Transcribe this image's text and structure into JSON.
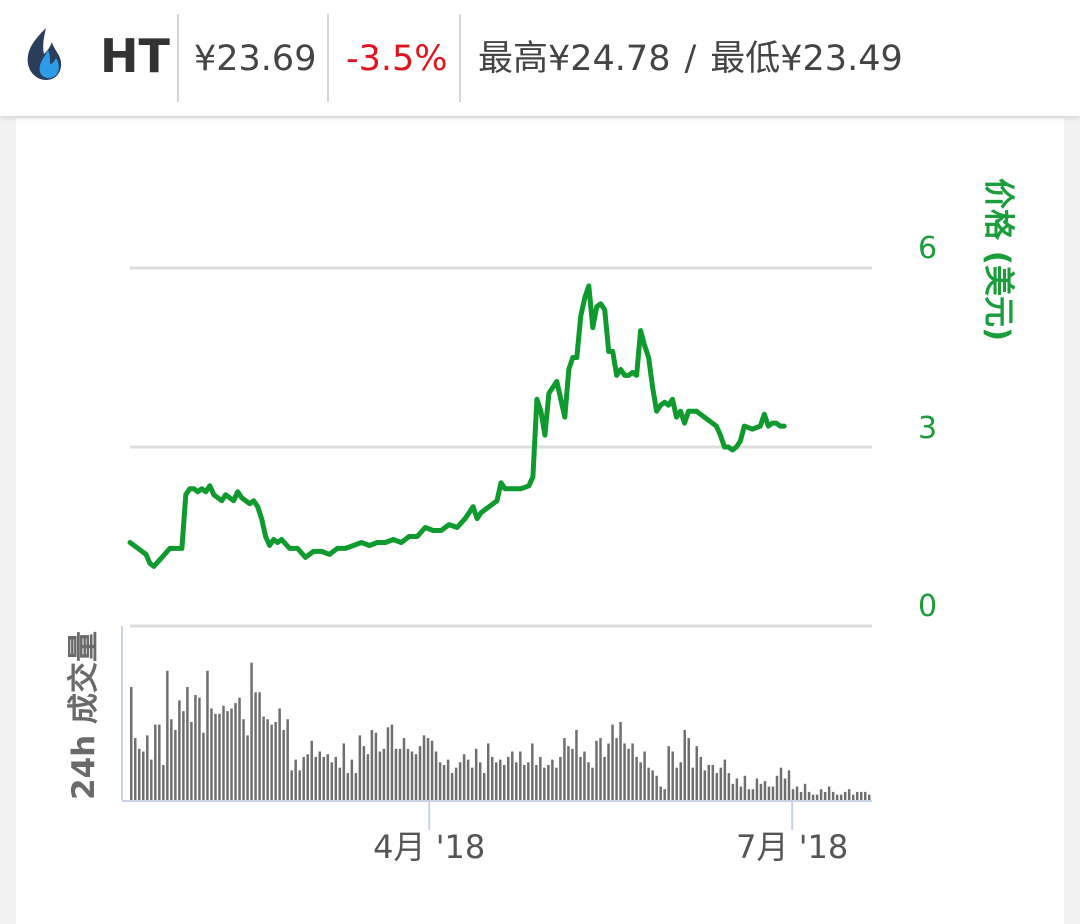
{
  "header": {
    "symbol": "HT",
    "price": "¥23.69",
    "change": "-3.5%",
    "high": "最高¥24.78",
    "separator": "/",
    "low": "最低¥23.49"
  },
  "colors": {
    "price_line": "#0f9a2e",
    "volume_bar": "#6f6f6f",
    "change_negative": "#e0141e"
  },
  "icons": {
    "logo": "flame-logo-icon"
  },
  "chart_data": {
    "type": "line",
    "y_axis_label": "价格 (美元)",
    "volume_axis_label": "24h 成交量",
    "yticks": [
      "6",
      "3",
      "0"
    ],
    "ylim": [
      0,
      6
    ],
    "xticks": [
      {
        "label": "4月 '18",
        "x": 75
      },
      {
        "label": "7月 '18",
        "x": 166
      }
    ],
    "x_range": [
      0,
      186
    ],
    "grid": true,
    "price_series": [
      [
        0,
        1.4
      ],
      [
        2,
        1.3
      ],
      [
        4,
        1.2
      ],
      [
        5,
        1.05
      ],
      [
        6,
        1.0
      ],
      [
        8,
        1.15
      ],
      [
        10,
        1.3
      ],
      [
        12,
        1.3
      ],
      [
        13,
        1.3
      ],
      [
        14,
        2.2
      ],
      [
        15,
        2.3
      ],
      [
        16,
        2.3
      ],
      [
        17,
        2.25
      ],
      [
        18,
        2.3
      ],
      [
        19,
        2.25
      ],
      [
        20,
        2.35
      ],
      [
        21,
        2.2
      ],
      [
        22,
        2.15
      ],
      [
        23,
        2.1
      ],
      [
        24,
        2.2
      ],
      [
        25,
        2.15
      ],
      [
        26,
        2.1
      ],
      [
        27,
        2.25
      ],
      [
        28,
        2.15
      ],
      [
        29,
        2.1
      ],
      [
        30,
        2.05
      ],
      [
        31,
        2.1
      ],
      [
        32,
        2.0
      ],
      [
        33,
        1.8
      ],
      [
        34,
        1.5
      ],
      [
        35,
        1.35
      ],
      [
        36,
        1.45
      ],
      [
        37,
        1.4
      ],
      [
        38,
        1.45
      ],
      [
        40,
        1.3
      ],
      [
        42,
        1.3
      ],
      [
        44,
        1.15
      ],
      [
        46,
        1.25
      ],
      [
        48,
        1.25
      ],
      [
        50,
        1.2
      ],
      [
        52,
        1.3
      ],
      [
        54,
        1.3
      ],
      [
        56,
        1.35
      ],
      [
        58,
        1.4
      ],
      [
        60,
        1.35
      ],
      [
        62,
        1.4
      ],
      [
        64,
        1.4
      ],
      [
        66,
        1.45
      ],
      [
        68,
        1.4
      ],
      [
        70,
        1.5
      ],
      [
        72,
        1.5
      ],
      [
        74,
        1.65
      ],
      [
        76,
        1.6
      ],
      [
        78,
        1.6
      ],
      [
        80,
        1.7
      ],
      [
        82,
        1.65
      ],
      [
        84,
        1.8
      ],
      [
        86,
        2.0
      ],
      [
        87,
        1.8
      ],
      [
        88,
        1.9
      ],
      [
        90,
        2.0
      ],
      [
        92,
        2.1
      ],
      [
        93,
        2.4
      ],
      [
        94,
        2.3
      ],
      [
        96,
        2.3
      ],
      [
        98,
        2.3
      ],
      [
        100,
        2.35
      ],
      [
        101,
        2.5
      ],
      [
        102,
        3.8
      ],
      [
        103,
        3.6
      ],
      [
        104,
        3.2
      ],
      [
        105,
        3.9
      ],
      [
        106,
        4.0
      ],
      [
        107,
        4.1
      ],
      [
        108,
        3.8
      ],
      [
        109,
        3.5
      ],
      [
        110,
        4.3
      ],
      [
        111,
        4.5
      ],
      [
        112,
        4.5
      ],
      [
        113,
        5.2
      ],
      [
        114,
        5.5
      ],
      [
        115,
        5.7
      ],
      [
        116,
        5.0
      ],
      [
        117,
        5.35
      ],
      [
        118,
        5.4
      ],
      [
        119,
        5.3
      ],
      [
        120,
        4.6
      ],
      [
        121,
        4.6
      ],
      [
        122,
        4.2
      ],
      [
        123,
        4.3
      ],
      [
        124,
        4.2
      ],
      [
        125,
        4.2
      ],
      [
        126,
        4.25
      ],
      [
        127,
        4.2
      ],
      [
        128,
        4.95
      ],
      [
        129,
        4.7
      ],
      [
        130,
        4.5
      ],
      [
        131,
        4.0
      ],
      [
        132,
        3.6
      ],
      [
        133,
        3.7
      ],
      [
        134,
        3.75
      ],
      [
        135,
        3.7
      ],
      [
        136,
        3.8
      ],
      [
        137,
        3.5
      ],
      [
        138,
        3.6
      ],
      [
        139,
        3.4
      ],
      [
        140,
        3.6
      ],
      [
        142,
        3.6
      ],
      [
        144,
        3.5
      ],
      [
        146,
        3.4
      ],
      [
        147,
        3.35
      ],
      [
        148,
        3.2
      ],
      [
        149,
        3.0
      ],
      [
        150,
        3.0
      ],
      [
        151,
        2.95
      ],
      [
        152,
        3.0
      ],
      [
        153,
        3.1
      ],
      [
        154,
        3.35
      ],
      [
        156,
        3.3
      ],
      [
        158,
        3.35
      ],
      [
        159,
        3.55
      ],
      [
        160,
        3.35
      ],
      [
        161,
        3.4
      ],
      [
        162,
        3.4
      ],
      [
        163,
        3.35
      ],
      [
        164,
        3.35
      ]
    ],
    "volume_values": [
      4.2,
      2.3,
      1.9,
      1.8,
      2.4,
      1.5,
      2.8,
      2.8,
      1.3,
      4.8,
      3.0,
      2.6,
      3.7,
      3.3,
      4.2,
      2.9,
      3.9,
      3.8,
      2.5,
      4.8,
      3.4,
      3.2,
      3.2,
      3.5,
      3.3,
      3.4,
      3.6,
      3.8,
      3.0,
      2.4,
      5.1,
      4.0,
      4.0,
      3.1,
      3.0,
      2.8,
      2.9,
      3.4,
      2.6,
      3.0,
      1.1,
      1.5,
      1.1,
      1.6,
      1.7,
      2.2,
      1.6,
      1.8,
      1.6,
      1.7,
      1.4,
      1.6,
      1.2,
      2.1,
      1.0,
      1.5,
      1.0,
      2.4,
      2.0,
      1.7,
      2.6,
      2.5,
      1.8,
      1.9,
      2.7,
      2.8,
      1.9,
      1.9,
      2.3,
      1.9,
      1.8,
      1.7,
      2.0,
      2.4,
      2.3,
      2.2,
      1.8,
      1.4,
      1.3,
      1.5,
      1.0,
      1.2,
      1.4,
      1.7,
      1.5,
      1.2,
      1.9,
      1.4,
      1.0,
      2.1,
      1.6,
      1.4,
      1.5,
      1.3,
      1.6,
      1.8,
      1.4,
      1.8,
      1.3,
      1.4,
      2.1,
      1.3,
      1.6,
      1.2,
      1.3,
      1.5,
      1.2,
      1.6,
      2.3,
      2.0,
      1.9,
      2.6,
      1.6,
      1.8,
      1.4,
      1.2,
      2.2,
      2.3,
      1.6,
      2.1,
      2.8,
      2.3,
      2.9,
      2.1,
      1.9,
      2.1,
      1.6,
      1.4,
      1.8,
      1.2,
      1.1,
      0.9,
      0.5,
      0.4,
      2.0,
      1.8,
      1.2,
      1.4,
      2.6,
      2.3,
      1.2,
      2.0,
      1.6,
      1.1,
      1.3,
      1.3,
      1.0,
      1.2,
      1.5,
      1.0,
      0.6,
      0.8,
      0.5,
      0.9,
      0.4,
      0.4,
      0.8,
      0.6,
      0.7,
      0.5,
      0.5,
      0.9,
      1.2,
      0.8,
      1.1,
      0.4,
      0.5,
      0.3,
      0.6,
      0.3,
      0.2,
      0.2,
      0.4,
      0.3,
      0.5,
      0.3,
      0.2,
      0.2,
      0.3,
      0.4,
      0.2,
      0.3,
      0.3,
      0.3,
      0.2
    ]
  }
}
